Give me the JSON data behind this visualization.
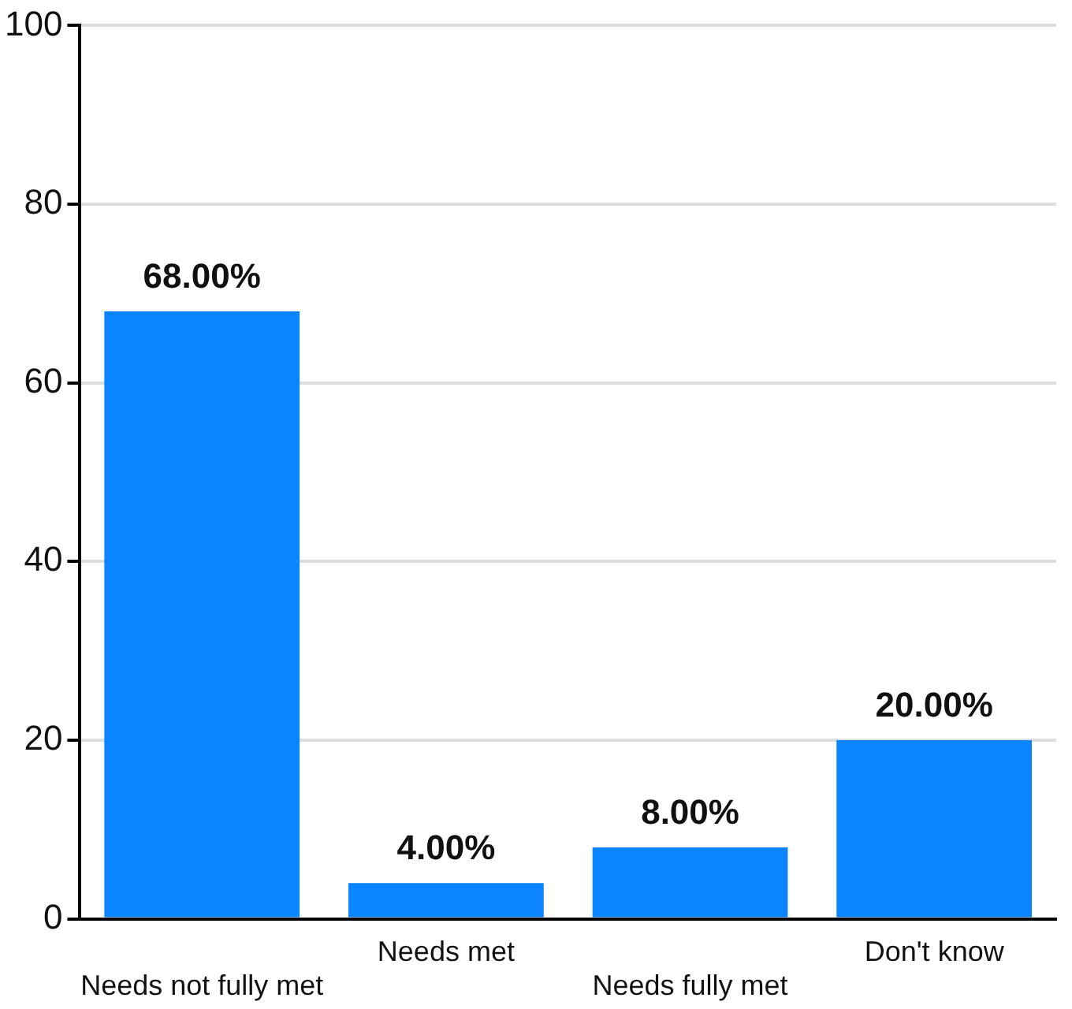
{
  "chart_data": {
    "type": "bar",
    "categories": [
      "Needs not fully met",
      "Needs met",
      "Needs fully met",
      "Don't know"
    ],
    "values": [
      68,
      4,
      8,
      20
    ],
    "value_labels": [
      "68.00%",
      "4.00%",
      "8.00%",
      "20.00%"
    ],
    "color": "#0a84ff",
    "ylim": [
      0,
      100
    ],
    "yticks": [
      0,
      20,
      40,
      60,
      80,
      100
    ],
    "grid": "y"
  }
}
